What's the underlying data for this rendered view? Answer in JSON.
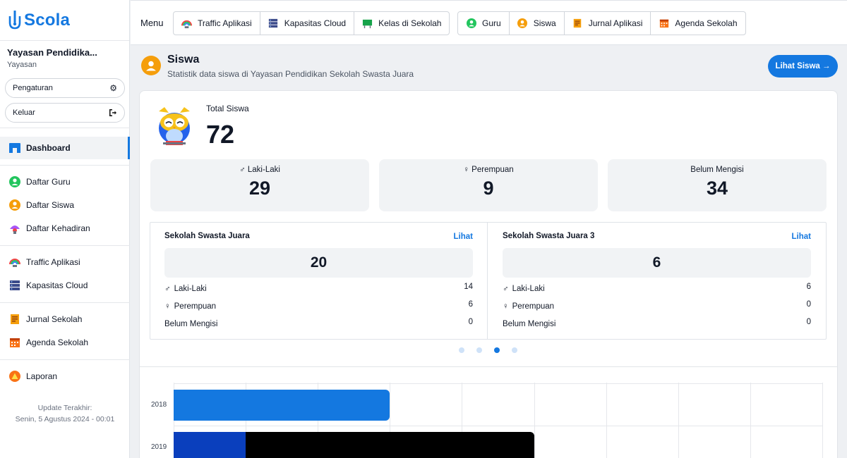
{
  "app": {
    "name": "Scola"
  },
  "org": {
    "name": "Yayasan Pendidika...",
    "type": "Yayasan"
  },
  "sidebar": {
    "settings_label": "Pengaturan",
    "logout_label": "Keluar",
    "items": [
      {
        "label": "Dashboard",
        "icon": "dashboard-icon"
      },
      {
        "label": "Daftar Guru",
        "icon": "teacher-icon"
      },
      {
        "label": "Daftar Siswa",
        "icon": "student-icon"
      },
      {
        "label": "Daftar Kehadiran",
        "icon": "attendance-icon"
      },
      {
        "label": "Traffic Aplikasi",
        "icon": "traffic-icon"
      },
      {
        "label": "Kapasitas Cloud",
        "icon": "cloud-capacity-icon"
      },
      {
        "label": "Jurnal Sekolah",
        "icon": "journal-icon"
      },
      {
        "label": "Agenda Sekolah",
        "icon": "calendar-icon"
      },
      {
        "label": "Laporan",
        "icon": "report-icon"
      }
    ],
    "update_label": "Update Terakhir:",
    "update_value": "Senin, 5 Agustus 2024 - 00:01"
  },
  "topbar": {
    "menu_label": "Menu",
    "group1": [
      "Traffic Aplikasi",
      "Kapasitas Cloud",
      "Kelas di Sekolah"
    ],
    "group2": [
      "Guru",
      "Siswa",
      "Jurnal Aplikasi",
      "Agenda Sekolah"
    ]
  },
  "header": {
    "title": "Siswa",
    "subtitle": "Statistik data siswa di Yayasan Pendidikan Sekolah Swasta Juara",
    "button": "Lihat Siswa →"
  },
  "summary": {
    "total_label": "Total Siswa",
    "total_value": "72",
    "male_label": "Laki-Laki",
    "male_value": "29",
    "female_label": "Perempuan",
    "female_value": "9",
    "unfilled_label": "Belum Mengisi",
    "unfilled_value": "34"
  },
  "schools": [
    {
      "name": "Sekolah Swasta Juara",
      "link": "Lihat",
      "total": "20",
      "rows": [
        {
          "label": "Laki-Laki",
          "value": "14"
        },
        {
          "label": "Perempuan",
          "value": "6"
        },
        {
          "label": "Belum Mengisi",
          "value": "0"
        }
      ]
    },
    {
      "name": "Sekolah Swasta Juara 3",
      "link": "Lihat",
      "total": "6",
      "rows": [
        {
          "label": "Laki-Laki",
          "value": "6"
        },
        {
          "label": "Perempuan",
          "value": "0"
        },
        {
          "label": "Belum Mengisi",
          "value": "0"
        }
      ]
    }
  ],
  "carousel": {
    "count": 4,
    "active": 2
  },
  "colors": {
    "accent": "#1478e0",
    "bar2018": "#1478e0",
    "bar2019_a": "#0a3fbd",
    "bar2019_b": "#000000"
  },
  "chart_data": {
    "type": "bar",
    "orientation": "horizontal",
    "categories": [
      "2018",
      "2019"
    ],
    "series": [
      {
        "values": [
          30,
          10
        ]
      },
      {
        "values": [
          0,
          40
        ]
      }
    ],
    "xlim": [
      0,
      90
    ],
    "grid": true
  }
}
